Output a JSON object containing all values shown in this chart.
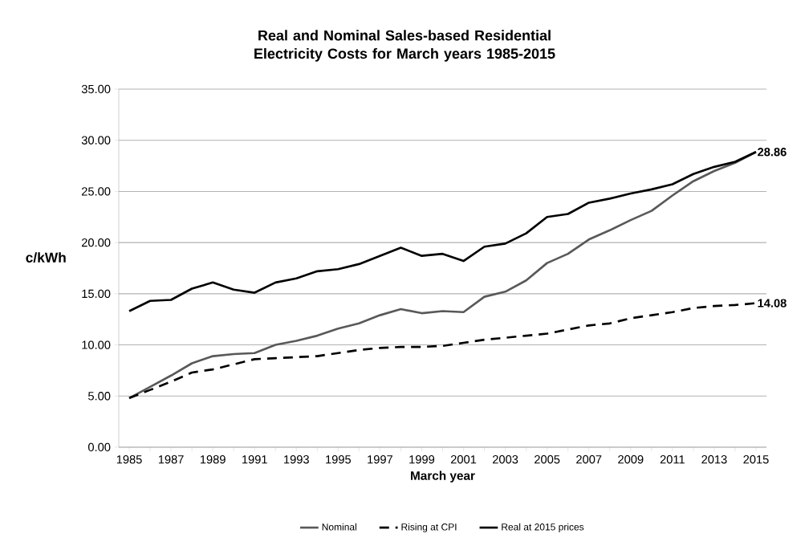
{
  "chart_data": {
    "type": "line",
    "title": "Real and Nominal Sales-based Residential Electricity Costs for March years 1985-2015",
    "xlabel": "March year",
    "ylabel": "c/kWh",
    "categories": [
      "1985",
      null,
      "1987",
      null,
      "1989",
      null,
      "1991",
      null,
      "1993",
      null,
      "1995",
      null,
      "1997",
      null,
      "1999",
      null,
      "2001",
      null,
      "2003",
      null,
      "2005",
      null,
      "2007",
      null,
      "2009",
      null,
      "2011",
      null,
      "2013",
      null,
      "2015"
    ],
    "ylim": [
      0,
      35
    ],
    "yticks": [
      {
        "value": 0,
        "label": "0.00"
      },
      {
        "value": 5,
        "label": "5.00"
      },
      {
        "value": 10,
        "label": "10.00"
      },
      {
        "value": 15,
        "label": "15.00"
      },
      {
        "value": 20,
        "label": "20.00"
      },
      {
        "value": 25,
        "label": "25.00"
      },
      {
        "value": 30,
        "label": "30.00"
      },
      {
        "value": 35,
        "label": "35.00"
      }
    ],
    "grid": "y",
    "legend": "bottom",
    "marker": "none",
    "series": [
      {
        "name": "Nominal",
        "color": "#595959",
        "line_style": "solid",
        "values": [
          4.8,
          5.9,
          7.0,
          8.2,
          8.9,
          9.1,
          9.2,
          10.0,
          10.4,
          10.9,
          11.6,
          12.1,
          12.9,
          13.5,
          13.1,
          13.3,
          13.2,
          14.7,
          15.2,
          16.3,
          18.0,
          18.9,
          20.3,
          21.2,
          22.2,
          23.1,
          24.6,
          26.0,
          27.0,
          27.8,
          28.86
        ],
        "value_labels": [
          null,
          null,
          null,
          null,
          null,
          null,
          null,
          null,
          null,
          null,
          null,
          null,
          null,
          null,
          null,
          null,
          null,
          null,
          null,
          null,
          null,
          null,
          null,
          null,
          null,
          null,
          null,
          null,
          null,
          null,
          null
        ]
      },
      {
        "name": "Rising at CPI",
        "color": "#000000",
        "line_style": "dashed",
        "values": [
          4.8,
          5.6,
          6.4,
          7.3,
          7.6,
          8.1,
          8.6,
          8.7,
          8.8,
          8.9,
          9.2,
          9.5,
          9.7,
          9.8,
          9.8,
          9.9,
          10.2,
          10.5,
          10.7,
          10.9,
          11.1,
          11.5,
          11.9,
          12.1,
          12.6,
          12.9,
          13.2,
          13.6,
          13.8,
          13.9,
          14.08
        ],
        "value_labels": [
          null,
          null,
          null,
          null,
          null,
          null,
          null,
          null,
          null,
          null,
          null,
          null,
          null,
          null,
          null,
          null,
          null,
          null,
          null,
          null,
          null,
          null,
          null,
          null,
          null,
          null,
          null,
          null,
          null,
          null,
          "14.08"
        ]
      },
      {
        "name": "Real at 2015 prices",
        "color": "#000000",
        "line_style": "solid",
        "values": [
          13.3,
          14.3,
          14.4,
          15.5,
          16.1,
          15.4,
          15.1,
          16.1,
          16.5,
          17.2,
          17.4,
          17.9,
          18.7,
          19.5,
          18.7,
          18.9,
          18.2,
          19.6,
          19.9,
          20.9,
          22.5,
          22.8,
          23.9,
          24.3,
          24.8,
          25.2,
          25.7,
          26.7,
          27.4,
          27.9,
          28.86
        ],
        "value_labels": [
          null,
          null,
          null,
          null,
          null,
          null,
          null,
          null,
          null,
          null,
          null,
          null,
          null,
          null,
          null,
          null,
          null,
          null,
          null,
          null,
          null,
          null,
          null,
          null,
          null,
          null,
          null,
          null,
          null,
          null,
          "28.86"
        ]
      }
    ]
  }
}
